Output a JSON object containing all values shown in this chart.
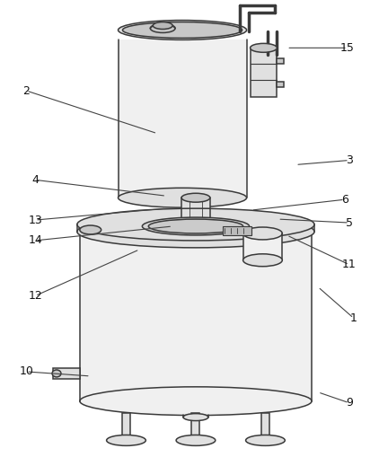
{
  "background_color": "#ffffff",
  "line_color": "#3a3a3a",
  "fill_light": "#f0f0f0",
  "fill_mid": "#e0e0e0",
  "fill_dark": "#c8c8c8",
  "annotations": [
    [
      "1",
      395,
      355,
      355,
      320
    ],
    [
      "2",
      28,
      100,
      175,
      148
    ],
    [
      "3",
      390,
      178,
      330,
      183
    ],
    [
      "4",
      38,
      200,
      185,
      218
    ],
    [
      "5",
      390,
      248,
      310,
      244
    ],
    [
      "6",
      385,
      222,
      280,
      234
    ],
    [
      "9",
      390,
      450,
      355,
      438
    ],
    [
      "10",
      28,
      415,
      100,
      420
    ],
    [
      "11",
      390,
      295,
      320,
      262
    ],
    [
      "12",
      38,
      330,
      155,
      278
    ],
    [
      "13",
      38,
      245,
      185,
      232
    ],
    [
      "14",
      38,
      268,
      192,
      252
    ],
    [
      "15",
      388,
      52,
      320,
      52
    ]
  ]
}
